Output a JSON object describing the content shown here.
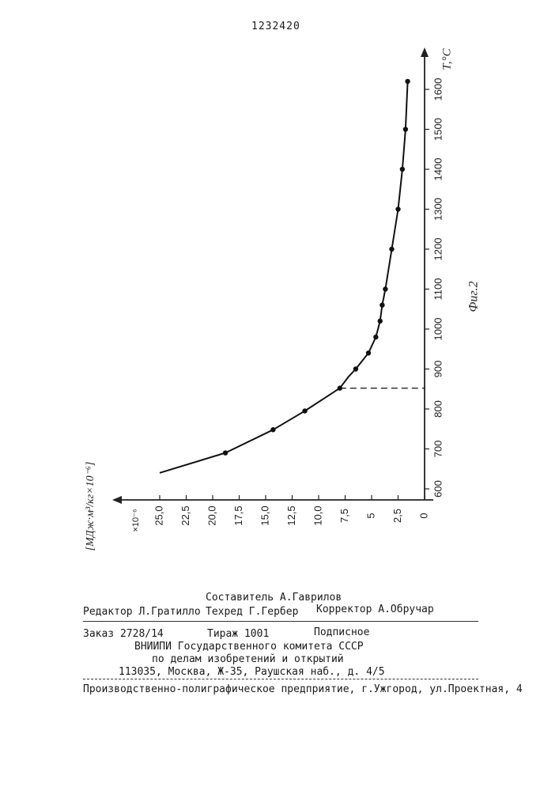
{
  "page": {
    "patent_number": "1232420"
  },
  "chart_data": {
    "type": "line",
    "rotated": "90deg-clockwise",
    "figure_label": "Фиг.2",
    "x_axis": {
      "label": "Т,°С",
      "ticks": [
        "600",
        "700",
        "800",
        "900",
        "1000",
        "1100",
        "1200",
        "1300",
        "1400",
        "1500",
        "1600"
      ],
      "range": [
        600,
        1600
      ]
    },
    "y_axis": {
      "label": "[МДж·м³/кг×10⁻⁶]",
      "multiplier_label": "×10⁻⁶",
      "ticks": [
        "0",
        "2,5",
        "5",
        "7,5",
        "10,0",
        "12,5",
        "15,0",
        "17,5",
        "20,0",
        "22,5",
        "25,0"
      ],
      "range": [
        0,
        25
      ]
    },
    "series": [
      {
        "x": [
          640,
          690,
          748,
          795,
          852,
          880,
          900,
          940,
          980,
          1020,
          1060,
          1100,
          1200,
          1300,
          1400,
          1500,
          1620
        ],
        "y": [
          25.0,
          18.8,
          14.3,
          11.3,
          8.0,
          7.2,
          6.5,
          5.3,
          4.6,
          4.2,
          4.0,
          3.7,
          3.1,
          2.5,
          2.1,
          1.8,
          1.6
        ],
        "markers_x": [
          690,
          748,
          795,
          852,
          900,
          940,
          980,
          1020,
          1060,
          1100,
          1200,
          1300,
          1400,
          1500,
          1620
        ],
        "markers_y": [
          18.8,
          14.3,
          11.3,
          8.0,
          6.5,
          5.3,
          4.6,
          4.2,
          4.0,
          3.7,
          3.1,
          2.5,
          2.1,
          1.8,
          1.6
        ]
      }
    ],
    "reference_line": {
      "x": 852,
      "y": 8.0,
      "style": "dashed"
    }
  },
  "imprint": {
    "compiler": "Составитель А.Гаврилов",
    "editor": "Редактор Л.Гратилло",
    "techred": "Техред Г.Гербер",
    "corrector": "Корректор А.Обручар",
    "order": "Заказ 2728/14",
    "circulation": "Тираж 1001",
    "subscription": "Подписное",
    "org1": "ВНИИПИ Государственного комитета СССР",
    "org2": "по делам изобретений и открытий",
    "address": "113035, Москва, Ж-35, Раушская наб., д. 4/5",
    "printer": "Производственно-полиграфическое предприятие, г.Ужгород, ул.Проектная, 4"
  }
}
